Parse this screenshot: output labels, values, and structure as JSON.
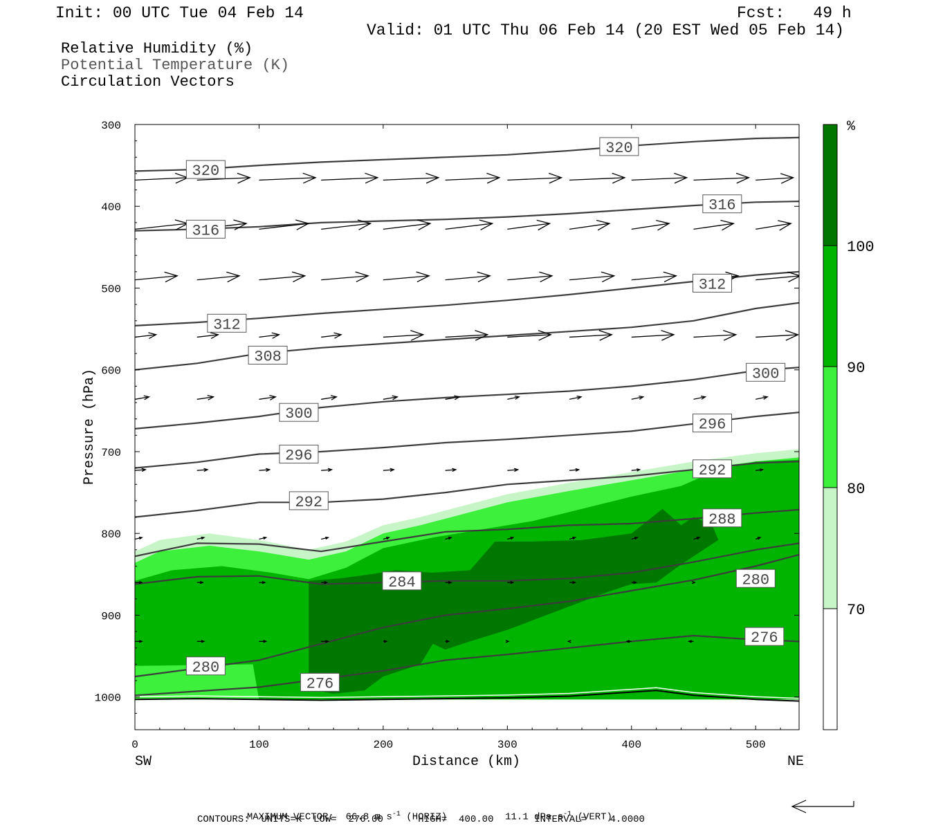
{
  "header": {
    "init": "Init: 00 UTC Tue 04 Feb 14",
    "fcst": "Fcst:   49 h",
    "valid": "Valid: 01 UTC Thu 06 Feb 14 (20 EST Wed 05 Feb 14)"
  },
  "legend": {
    "rh": "Relative Humidity (%)",
    "theta": "Potential Temperature (K)",
    "vectors": "Circulation Vectors"
  },
  "footer": {
    "maxvec_label": "MAXIMUM VECTOR:",
    "maxvec_horiz": "66.8 m s",
    "maxvec_horiz_sup": "-1",
    "maxvec_horiz_tag": "(HORIZ)",
    "maxvec_vert": "11.1 dPa s",
    "maxvec_vert_sup": "-1",
    "maxvec_vert_tag": "(VERT)",
    "contours": "CONTOURS:  UNITS=K  LOW=  276.00      HIGH=  400.00       INTERVAL=    4.0000"
  },
  "chart_data": {
    "type": "cross-section",
    "xlabel": "Distance (km)",
    "ylabel": "Pressure (hPa)",
    "xlim": [
      0,
      535
    ],
    "ylim": [
      1040,
      300
    ],
    "x_ticks": [
      0,
      100,
      200,
      300,
      400,
      500
    ],
    "y_ticks": [
      300,
      400,
      500,
      600,
      700,
      800,
      900,
      1000
    ],
    "x_end_labels": {
      "left": "SW",
      "right": "NE"
    },
    "colorbar": {
      "unit": "%",
      "levels": [
        70,
        80,
        90,
        100
      ],
      "colors": [
        "#ffffff",
        "#c8f5c8",
        "#3cf03c",
        "#00b400",
        "#007800"
      ]
    },
    "rh_regions": [
      {
        "level": 70,
        "color": "#c8f5c8",
        "x": [
          0,
          20,
          60,
          100,
          140,
          170,
          200,
          230,
          260,
          300,
          350,
          400,
          450,
          500,
          535,
          535,
          0
        ],
        "p": [
          822,
          808,
          800,
          808,
          820,
          810,
          790,
          780,
          768,
          752,
          738,
          725,
          712,
          702,
          697,
          1003,
          1003
        ]
      },
      {
        "level": 80,
        "color": "#3cf03c",
        "x": [
          0,
          20,
          60,
          100,
          140,
          170,
          200,
          230,
          260,
          300,
          350,
          400,
          450,
          500,
          535,
          535,
          0
        ],
        "p": [
          836,
          822,
          815,
          822,
          832,
          822,
          800,
          790,
          778,
          762,
          748,
          735,
          722,
          712,
          707,
          1003,
          1003
        ]
      },
      {
        "level": 90,
        "color": "#00b400",
        "x": [
          0,
          30,
          70,
          110,
          140,
          170,
          200,
          240,
          280,
          320,
          360,
          400,
          440,
          470,
          500,
          535,
          535,
          100,
          95,
          0
        ],
        "p": [
          858,
          845,
          840,
          848,
          856,
          842,
          818,
          805,
          795,
          785,
          770,
          755,
          742,
          722,
          712,
          710,
          1003,
          1003,
          960,
          962
        ]
      },
      {
        "level": 100,
        "color": "#007800",
        "x": [
          140,
          165,
          190,
          210,
          240,
          270,
          290,
          320,
          360,
          400,
          425,
          440,
          450,
          458,
          465,
          470,
          460,
          440,
          420,
          400,
          380,
          340,
          300,
          270,
          250,
          240,
          230,
          200,
          185,
          160,
          140
        ],
        "p": [
          858,
          855,
          850,
          845,
          848,
          845,
          810,
          810,
          808,
          800,
          770,
          790,
          780,
          785,
          790,
          808,
          818,
          838,
          860,
          862,
          872,
          895,
          918,
          932,
          942,
          935,
          960,
          975,
          992,
          996,
          990
        ]
      }
    ],
    "theta_contours": [
      {
        "value": 320,
        "labels": [
          [
            42,
            355
          ],
          [
            375,
            327
          ]
        ],
        "x": [
          0,
          50,
          100,
          150,
          200,
          250,
          300,
          350,
          400,
          450,
          500,
          535
        ],
        "p": [
          357,
          355,
          350,
          346,
          343,
          340,
          337,
          332,
          326,
          321,
          317,
          316
        ]
      },
      {
        "value": 316,
        "labels": [
          [
            42,
            428
          ],
          [
            458,
            397
          ]
        ],
        "x": [
          0,
          50,
          100,
          150,
          200,
          250,
          300,
          350,
          400,
          450,
          500,
          535
        ],
        "p": [
          430,
          428,
          425,
          420,
          418,
          416,
          413,
          409,
          404,
          399,
          395,
          394
        ]
      },
      {
        "value": 312,
        "labels": [
          [
            59,
            543
          ],
          [
            450,
            494
          ]
        ],
        "x": [
          0,
          50,
          100,
          150,
          200,
          250,
          300,
          350,
          400,
          450,
          500,
          535
        ],
        "p": [
          546,
          542,
          537,
          531,
          526,
          521,
          515,
          508,
          500,
          492,
          484,
          480
        ]
      },
      {
        "value": 308,
        "labels": [
          [
            92,
            582
          ]
        ],
        "x": [
          0,
          50,
          100,
          150,
          200,
          250,
          300,
          350,
          400,
          450,
          500,
          535
        ],
        "p": [
          600,
          592,
          580,
          573,
          568,
          563,
          558,
          553,
          548,
          540,
          525,
          518
        ]
      },
      {
        "value": 300,
        "labels": [
          [
            117,
            652
          ],
          [
            493,
            603
          ]
        ],
        "x": [
          0,
          50,
          100,
          150,
          200,
          250,
          300,
          350,
          400,
          450,
          500,
          535
        ],
        "p": [
          672,
          665,
          657,
          646,
          639,
          634,
          630,
          626,
          620,
          612,
          601,
          597
        ]
      },
      {
        "value": 296,
        "labels": [
          [
            117,
            703
          ],
          [
            450,
            665
          ]
        ],
        "x": [
          0,
          50,
          100,
          150,
          200,
          250,
          300,
          350,
          400,
          450,
          500,
          535
        ],
        "p": [
          720,
          713,
          703,
          700,
          695,
          689,
          685,
          680,
          675,
          666,
          657,
          652
        ]
      },
      {
        "value": 292,
        "labels": [
          [
            125,
            760
          ],
          [
            450,
            721
          ]
        ],
        "x": [
          0,
          50,
          100,
          150,
          200,
          250,
          300,
          350,
          400,
          450,
          500,
          535
        ],
        "p": [
          780,
          772,
          762,
          762,
          758,
          750,
          740,
          735,
          730,
          722,
          714,
          712
        ]
      },
      {
        "value": 288,
        "labels": [
          [
            458,
            781
          ]
        ],
        "x": [
          0,
          50,
          100,
          150,
          200,
          250,
          300,
          350,
          400,
          450,
          500,
          535
        ],
        "p": [
          828,
          812,
          813,
          822,
          810,
          798,
          795,
          790,
          788,
          782,
          775,
          771
        ]
      },
      {
        "value": 284,
        "labels": [
          [
            200,
            858
          ]
        ],
        "x": [
          0,
          50,
          100,
          150,
          200,
          250,
          300,
          350,
          400,
          450,
          500,
          535
        ],
        "p": [
          862,
          853,
          852,
          862,
          860,
          858,
          858,
          855,
          848,
          835,
          820,
          812
        ]
      },
      {
        "value": 280,
        "labels": [
          [
            42,
            962
          ],
          [
            485,
            855
          ]
        ],
        "x": [
          0,
          50,
          100,
          150,
          200,
          250,
          300,
          350,
          400,
          450,
          500,
          535
        ],
        "p": [
          975,
          965,
          955,
          935,
          915,
          900,
          892,
          883,
          870,
          857,
          840,
          826
        ]
      },
      {
        "value": 276,
        "labels": [
          [
            134,
            982
          ],
          [
            492,
            926
          ]
        ],
        "x": [
          0,
          50,
          100,
          150,
          200,
          250,
          300,
          350,
          400,
          450,
          500,
          535
        ],
        "p": [
          998,
          993,
          988,
          978,
          968,
          955,
          948,
          940,
          932,
          925,
          930,
          932
        ]
      }
    ],
    "vector_rows": [
      {
        "p": 368,
        "y_end": 365,
        "x": [
          0,
          50,
          100,
          150,
          200,
          250,
          300,
          350,
          400,
          450,
          500
        ],
        "dx": [
          45,
          45,
          48,
          48,
          47,
          46,
          46,
          47,
          47,
          47,
          32
        ]
      },
      {
        "p": 428,
        "y_end": 421,
        "x": [
          0,
          50,
          100,
          150,
          200,
          250,
          300,
          350,
          400,
          450,
          500
        ],
        "dx": [
          45,
          42,
          42,
          42,
          40,
          40,
          36,
          34,
          32,
          34,
          30
        ]
      },
      {
        "p": 490,
        "y_end": 485,
        "x": [
          0,
          50,
          100,
          150,
          200,
          250,
          300,
          350,
          400,
          450,
          500
        ],
        "dx": [
          36,
          36,
          39,
          40,
          39,
          38,
          38,
          38,
          38,
          38,
          38
        ]
      },
      {
        "p": 560,
        "y_end": 557,
        "x": [
          0,
          50,
          100,
          150,
          200,
          250,
          300,
          350,
          400,
          450,
          500
        ],
        "dx": [
          18,
          18,
          17,
          17,
          34,
          36,
          37,
          36,
          36,
          36,
          36
        ]
      },
      {
        "p": 636,
        "y_end": 633,
        "x": [
          0,
          50,
          100,
          150,
          200,
          250,
          300,
          350,
          400,
          450,
          500
        ],
        "dx": [
          12,
          14,
          14,
          13,
          12,
          12,
          10,
          10,
          10,
          10,
          10
        ]
      },
      {
        "p": 723,
        "y_end": 722,
        "x": [
          0,
          50,
          100,
          150,
          200,
          250,
          300,
          350,
          400,
          450,
          500
        ],
        "dx": [
          9,
          9,
          9,
          9,
          9,
          9,
          9,
          8,
          7,
          7,
          6
        ]
      },
      {
        "p": 807,
        "y_end": 805,
        "x": [
          0,
          50,
          100,
          150,
          200,
          250,
          300,
          350,
          400,
          450,
          500
        ],
        "dx": [
          6,
          6,
          6,
          6,
          5,
          5,
          5,
          5,
          5,
          5,
          4
        ]
      },
      {
        "p": 860,
        "y_end": 860,
        "x": [
          0,
          50,
          100,
          150,
          200,
          250,
          300,
          350,
          400,
          450,
          500
        ],
        "dx": [
          6,
          5,
          5,
          5,
          5,
          5,
          5,
          5,
          4,
          1,
          1
        ]
      },
      {
        "p": 932,
        "y_end": 932,
        "x": [
          0,
          50,
          100,
          150,
          200,
          250,
          300,
          350,
          400,
          450,
          500
        ],
        "dx": [
          6,
          6,
          6,
          6,
          3,
          3,
          1,
          -1,
          -4,
          -4,
          -2
        ]
      }
    ],
    "surface": {
      "x": [
        0,
        50,
        100,
        150,
        200,
        250,
        300,
        350,
        400,
        420,
        450,
        500,
        535
      ],
      "p": [
        1003,
        1002,
        1003,
        1004,
        1003,
        1002,
        1001,
        999,
        994,
        992,
        998,
        1003,
        1005
      ]
    },
    "scale_arrow": {
      "direction": "left"
    }
  }
}
